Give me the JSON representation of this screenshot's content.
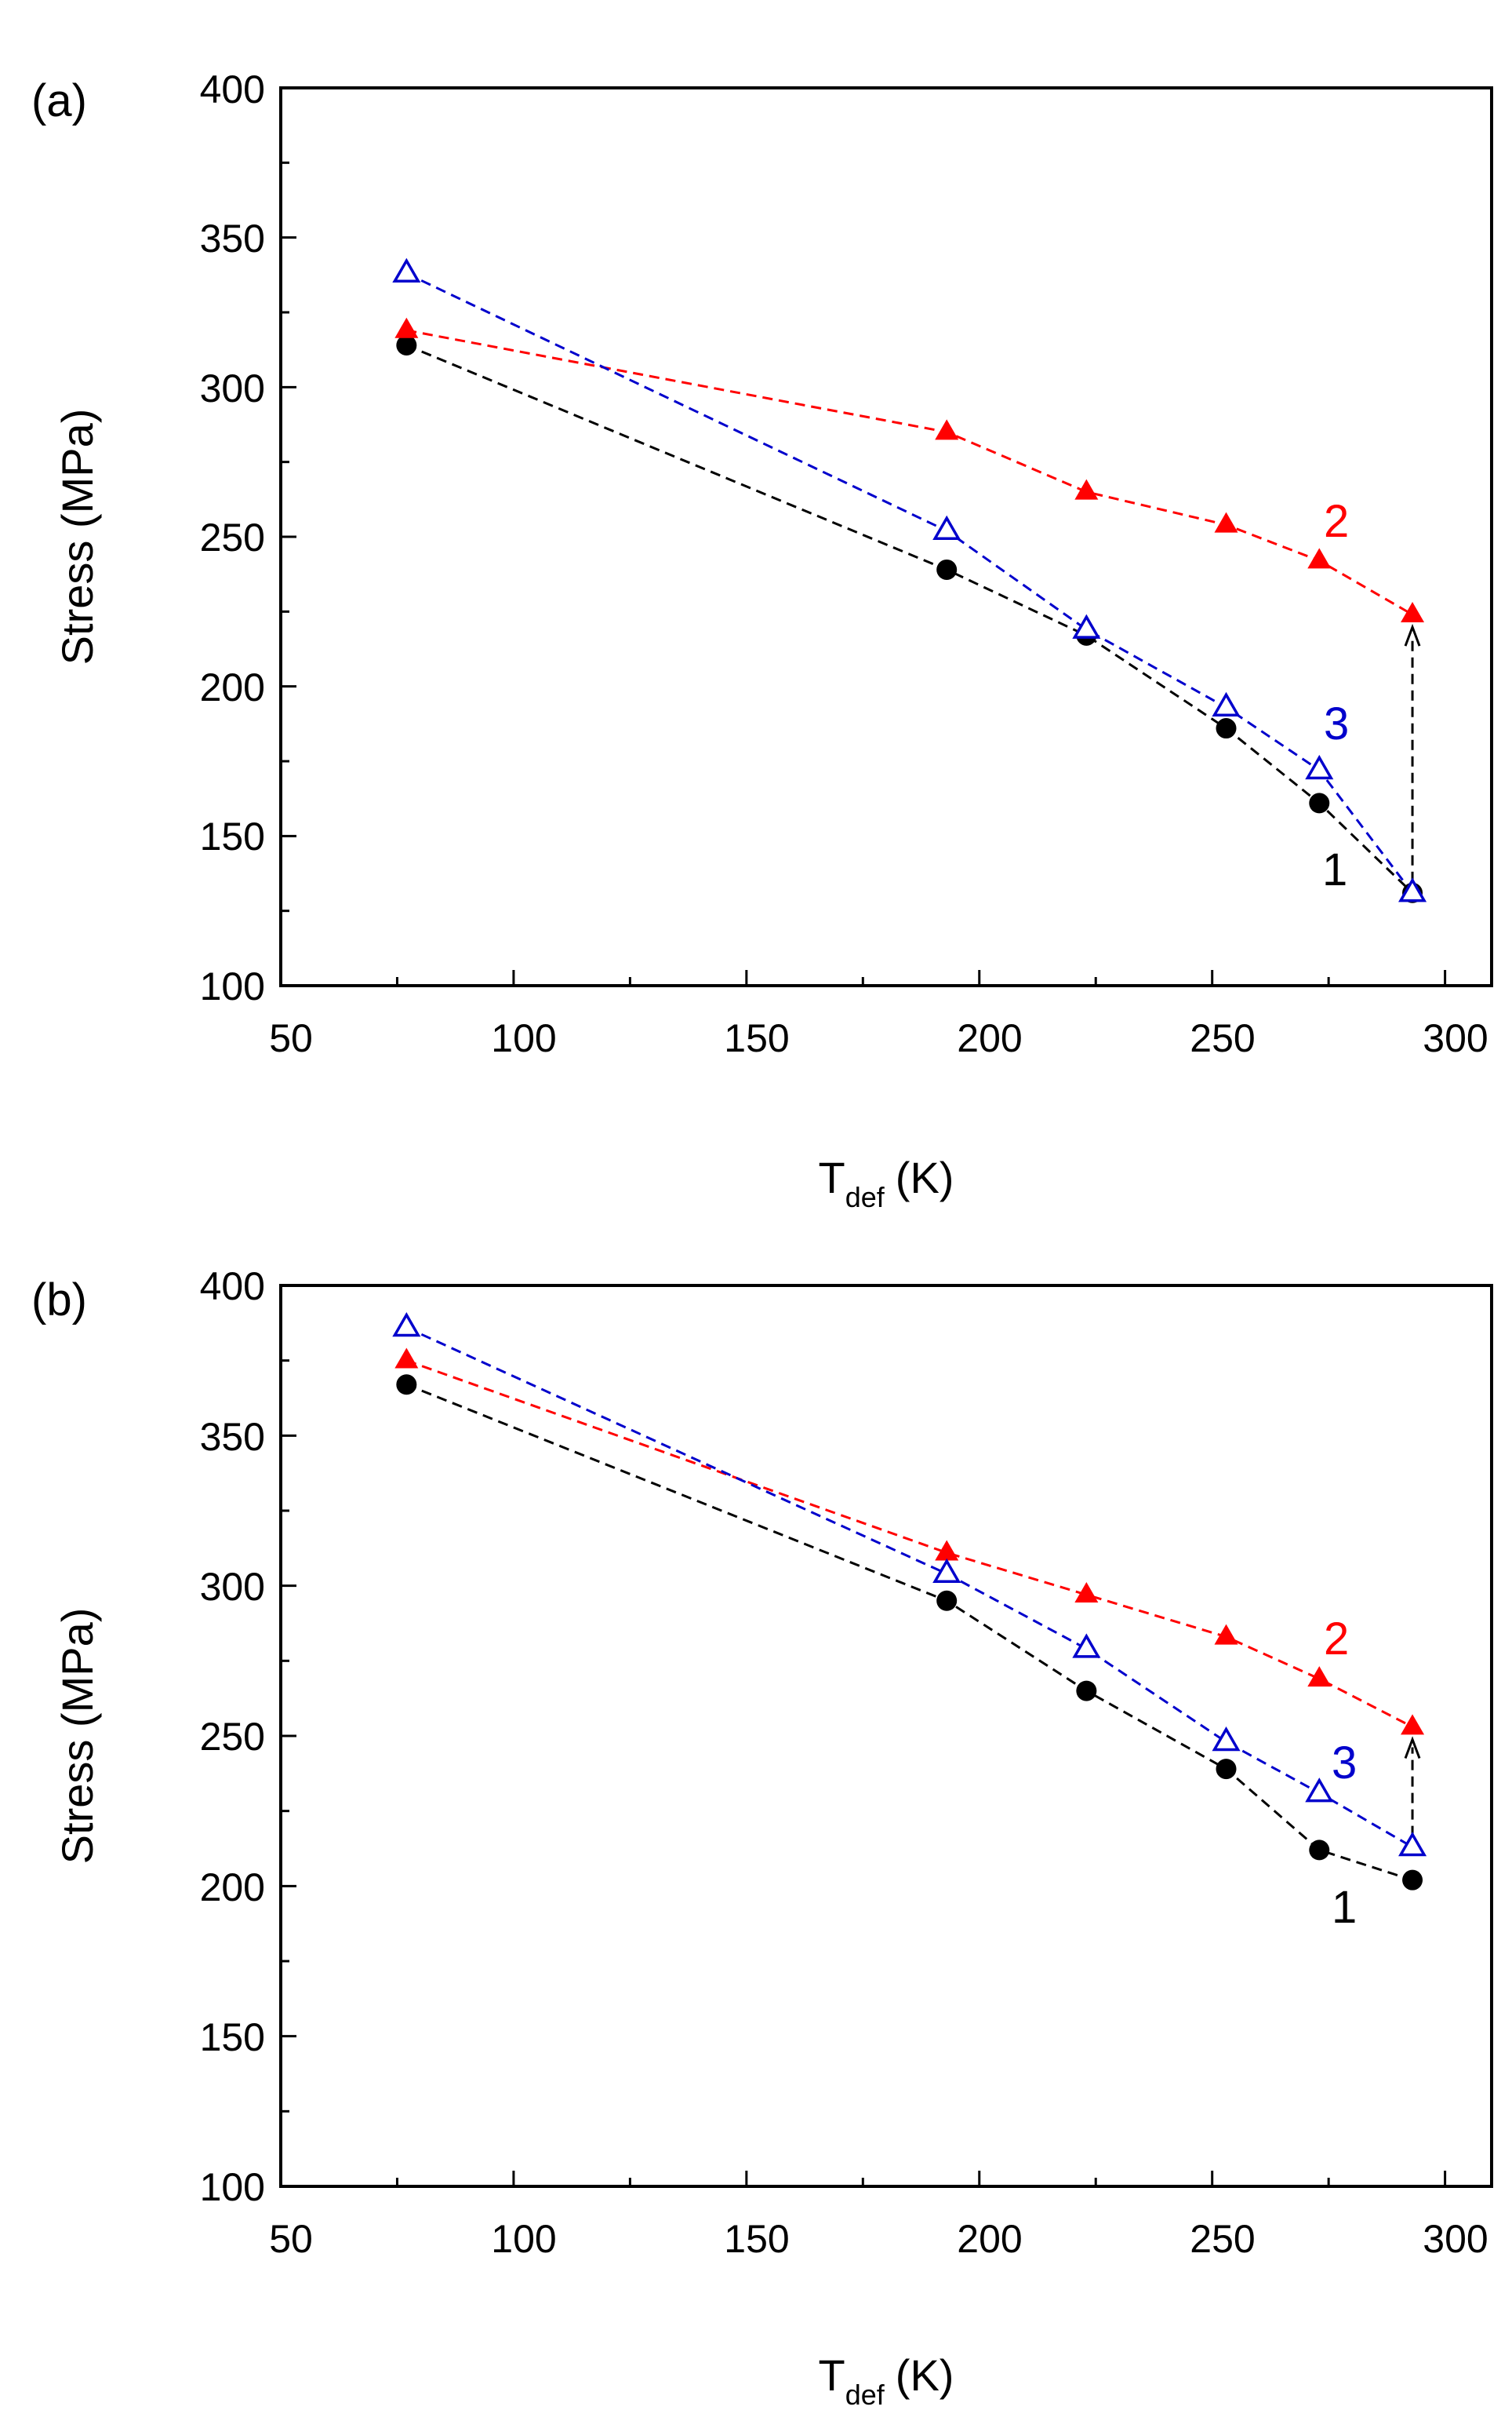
{
  "chart_data": [
    {
      "type": "line",
      "panel_label": "(a)",
      "xlabel": "T",
      "xlabel_sub": "def",
      "xlabel_unit": "(K)",
      "ylabel": "Stress (MPa)",
      "xlim": [
        50,
        310
      ],
      "ylim": [
        100,
        400
      ],
      "x_ticks": [
        "50",
        "100",
        "150",
        "200",
        "250",
        "300"
      ],
      "y_ticks": [
        "100",
        "150",
        "200",
        "250",
        "300",
        "350",
        "400"
      ],
      "series": [
        {
          "name": "1",
          "color": "#000000",
          "marker": "circle-filled",
          "x": [
            77,
            193,
            223,
            253,
            273,
            293
          ],
          "y": [
            314,
            239,
            217,
            186,
            161,
            131
          ]
        },
        {
          "name": "2",
          "color": "#ff0000",
          "marker": "triangle-filled",
          "x": [
            77,
            193,
            223,
            253,
            273,
            293
          ],
          "y": [
            319,
            285,
            265,
            254,
            242,
            224
          ]
        },
        {
          "name": "3",
          "color": "#0000cc",
          "marker": "triangle-open",
          "x": [
            77,
            193,
            223,
            253,
            273,
            293
          ],
          "y": [
            338,
            252,
            219,
            193,
            172,
            131
          ]
        }
      ],
      "arrow": {
        "x": 293,
        "from_y": 131,
        "to_y": 224
      },
      "labels": {
        "s1": "1",
        "s2": "2",
        "s3": "3"
      }
    },
    {
      "type": "line",
      "panel_label": "(b)",
      "xlabel": "T",
      "xlabel_sub": "def",
      "xlabel_unit": "(K)",
      "ylabel": "Stress (MPa)",
      "xlim": [
        50,
        310
      ],
      "ylim": [
        100,
        400
      ],
      "x_ticks": [
        "50",
        "100",
        "150",
        "200",
        "250",
        "300"
      ],
      "y_ticks": [
        "100",
        "150",
        "200",
        "250",
        "300",
        "350",
        "400"
      ],
      "series": [
        {
          "name": "1",
          "color": "#000000",
          "marker": "circle-filled",
          "x": [
            77,
            193,
            223,
            253,
            273,
            293
          ],
          "y": [
            367,
            295,
            265,
            239,
            212,
            202
          ]
        },
        {
          "name": "2",
          "color": "#ff0000",
          "marker": "triangle-filled",
          "x": [
            77,
            193,
            223,
            253,
            273,
            293
          ],
          "y": [
            375,
            311,
            297,
            283,
            269,
            253
          ]
        },
        {
          "name": "3",
          "color": "#0000cc",
          "marker": "triangle-open",
          "x": [
            77,
            193,
            223,
            253,
            273,
            293
          ],
          "y": [
            386,
            304,
            279,
            248,
            231,
            213
          ]
        }
      ],
      "arrow": {
        "x": 293,
        "from_y": 213,
        "to_y": 253
      },
      "labels": {
        "s1": "1",
        "s2": "2",
        "s3": "3"
      }
    }
  ]
}
